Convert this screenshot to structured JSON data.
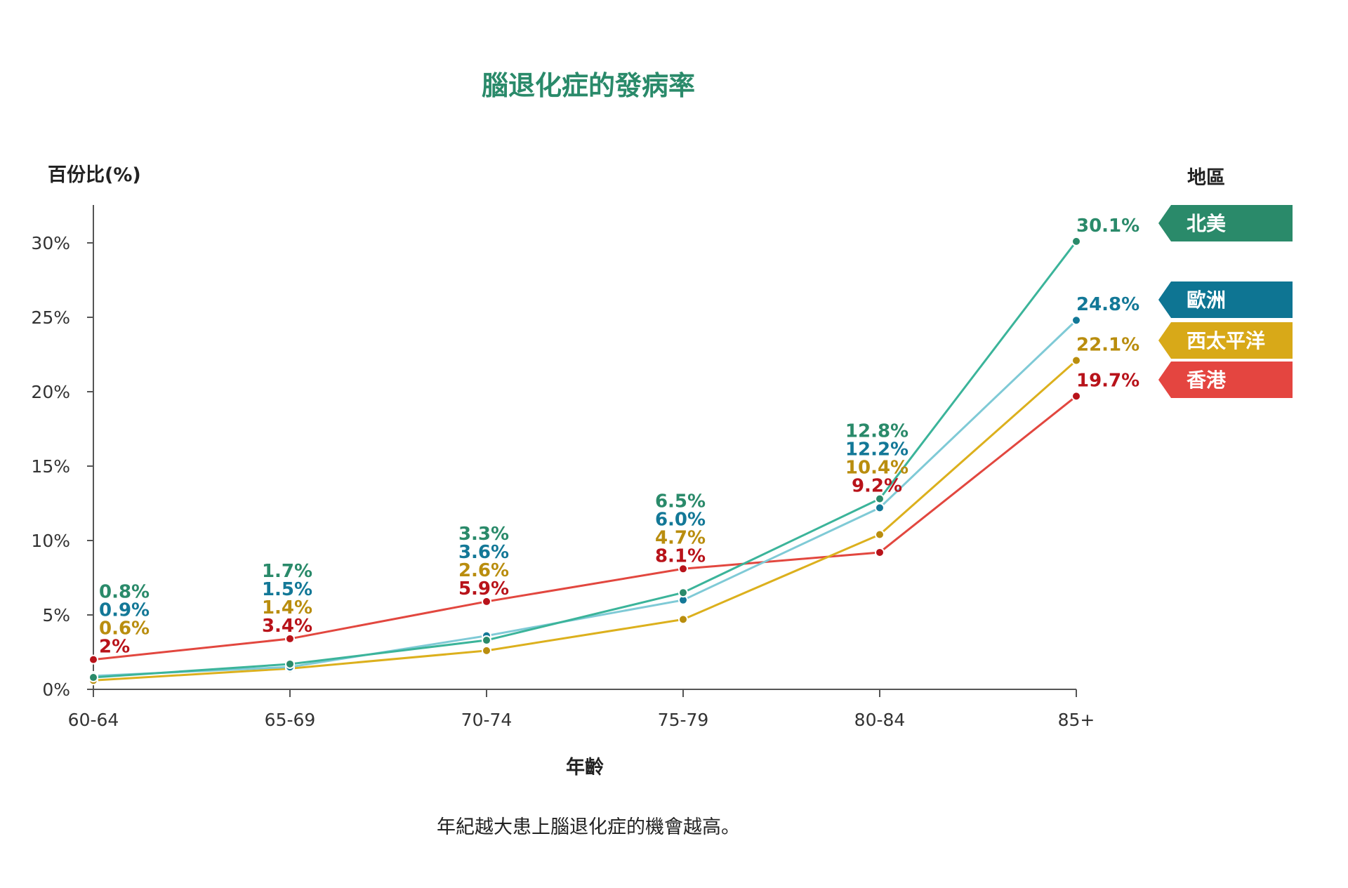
{
  "chart_data": {
    "type": "line",
    "title": "腦退化症的發病率",
    "ylabel": "百份比(%)",
    "xlabel": "年齡",
    "legend_title": "地區",
    "caption": "年紀越大患上腦退化症的機會越高。",
    "categories": [
      "60-64",
      "65-69",
      "70-74",
      "75-79",
      "80-84",
      "85+"
    ],
    "ylim": [
      0,
      30
    ],
    "y_ticks": [
      "0%",
      "5%",
      "10%",
      "15%",
      "20%",
      "25%",
      "30%"
    ],
    "grid": false,
    "legend_position": "right",
    "series": [
      {
        "name": "北美",
        "values": [
          0.8,
          1.7,
          3.3,
          6.5,
          12.8,
          30.1
        ],
        "labels": [
          "0.8%",
          "1.7%",
          "3.3%",
          "6.5%",
          "12.8%",
          "30.1%"
        ],
        "line_color": "#3bb49a",
        "label_color": "#2a8a6a",
        "tag_color": "#2a8a6a"
      },
      {
        "name": "歐洲",
        "values": [
          0.9,
          1.5,
          3.6,
          6.0,
          12.2,
          24.8
        ],
        "labels": [
          "0.9%",
          "1.5%",
          "3.6%",
          "6.0%",
          "12.2%",
          "24.8%"
        ],
        "line_color": "#7fcad6",
        "label_color": "#137897",
        "tag_color": "#0e7593"
      },
      {
        "name": "西太平洋",
        "values": [
          0.6,
          1.4,
          2.6,
          4.7,
          10.4,
          22.1
        ],
        "labels": [
          "0.6%",
          "1.4%",
          "2.6%",
          "4.7%",
          "10.4%",
          "22.1%"
        ],
        "line_color": "#dcb01d",
        "label_color": "#b98d0e",
        "tag_color": "#d8a918"
      },
      {
        "name": "香港",
        "values": [
          2,
          3.4,
          5.9,
          8.1,
          9.2,
          19.7
        ],
        "labels": [
          "2%",
          "3.4%",
          "5.9%",
          "8.1%",
          "9.2%",
          "19.7%"
        ],
        "line_color": "#e2473f",
        "label_color": "#b8131a",
        "tag_color": "#e44540"
      }
    ]
  },
  "colors": {
    "title": "#2a8a6a",
    "axis": "#555555",
    "text": "#222222"
  }
}
